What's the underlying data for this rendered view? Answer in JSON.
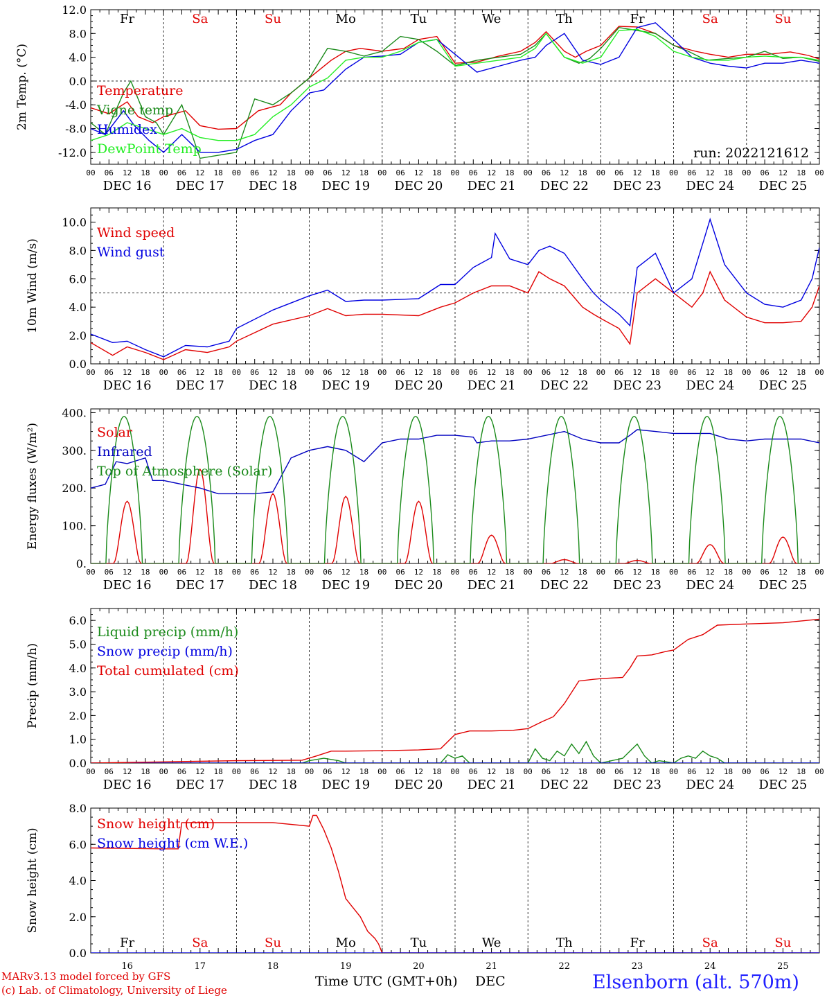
{
  "run_label": "run: 2022121612",
  "station": "Elsenborn (alt. 570m)",
  "credits": [
    "MARv3.13 model forced by GFS",
    "(c) Lab. of Climatology, University of Liege"
  ],
  "xaxis_label": "Time UTC (GMT+0h)",
  "xaxis_month": "DEC",
  "hour_ticks": [
    "00",
    "06",
    "12",
    "18"
  ],
  "end_tick": "00",
  "dates": [
    "DEC 16",
    "DEC 17",
    "DEC 18",
    "DEC 19",
    "DEC 20",
    "DEC 21",
    "DEC 22",
    "DEC 23",
    "DEC 24",
    "DEC 25"
  ],
  "day_numbers": [
    "16",
    "17",
    "18",
    "19",
    "20",
    "21",
    "22",
    "23",
    "24",
    "25"
  ],
  "weekdays": [
    "Fr",
    "Sa",
    "Su",
    "Mo",
    "Tu",
    "We",
    "Th",
    "Fr",
    "Sa",
    "Su"
  ],
  "weekend_color": "#e00000",
  "chart_data": [
    {
      "type": "line",
      "ylabel": "2m Temp. (°C)",
      "ylim": [
        -14,
        12
      ],
      "yticks": [
        -12,
        -8,
        -4,
        0,
        4,
        8,
        12
      ],
      "ytick_labels": [
        "-12.0",
        "-8.0",
        "-4.0",
        "0.0",
        "4.0",
        "8.0",
        "12.0"
      ],
      "ref_line": 0,
      "series": [
        {
          "name": "Temperature",
          "color": "#e00000",
          "x": [
            0,
            0.25,
            0.5,
            0.65,
            0.85,
            1.0,
            1.3,
            1.5,
            1.75,
            2.0,
            2.3,
            2.6,
            2.75,
            3.0,
            3.3,
            3.5,
            3.7,
            4.0,
            4.3,
            4.5,
            4.75,
            5.0,
            5.3,
            5.6,
            5.9,
            6.1,
            6.25,
            6.5,
            6.65,
            6.8,
            7.0,
            7.25,
            7.5,
            7.75,
            8.0,
            8.3,
            8.5,
            8.75,
            9.0,
            9.3,
            9.6,
            9.85,
            10.0
          ],
          "values": [
            -4.5,
            -5.5,
            -3.5,
            -6,
            -7,
            -6,
            -5,
            -7.5,
            -8.1,
            -8,
            -5,
            -4,
            -2,
            0.5,
            3.5,
            5,
            5.5,
            5,
            5.5,
            7,
            7.5,
            3,
            3.2,
            4.2,
            5,
            6.5,
            8.3,
            5,
            4,
            5,
            6,
            9.2,
            9.1,
            8,
            6,
            5,
            4.5,
            4,
            4.5,
            4.5,
            4.9,
            4.3,
            3.7
          ]
        },
        {
          "name": "Vigne temp",
          "color": "#1a8a1a",
          "x": [
            0,
            0.2,
            0.45,
            0.55,
            0.75,
            0.9,
            1.0,
            1.25,
            1.5,
            1.75,
            2.0,
            2.25,
            2.5,
            2.75,
            3.0,
            3.25,
            3.5,
            3.75,
            4.0,
            4.25,
            4.5,
            4.75,
            5.0,
            5.3,
            5.6,
            5.9,
            6.1,
            6.25,
            6.5,
            6.7,
            6.85,
            7.0,
            7.25,
            7.5,
            7.75,
            8.0,
            8.2,
            8.45,
            8.75,
            9.0,
            9.25,
            9.5,
            9.75,
            10.0
          ],
          "values": [
            -7,
            -9,
            -2,
            0,
            -6,
            -7,
            -9,
            -4,
            -13,
            -12.5,
            -12,
            -3,
            -4,
            -2,
            0.5,
            5.5,
            5,
            4.2,
            5,
            7.5,
            7,
            5,
            2.6,
            3.5,
            4,
            4.5,
            6,
            8,
            4,
            3,
            3.8,
            5.5,
            9,
            8.5,
            8,
            6,
            5,
            3.5,
            3.8,
            4,
            5,
            3.8,
            4,
            3.3
          ]
        },
        {
          "name": "Humidex",
          "color": "#0000e0",
          "x": [
            0,
            0.2,
            0.45,
            0.6,
            0.8,
            1.0,
            1.25,
            1.5,
            1.75,
            2.0,
            2.25,
            2.5,
            2.75,
            3.0,
            3.2,
            3.5,
            3.75,
            4.0,
            4.25,
            4.5,
            4.75,
            5.0,
            5.3,
            5.6,
            5.9,
            6.1,
            6.25,
            6.5,
            6.75,
            7.0,
            7.25,
            7.5,
            7.75,
            8.0,
            8.25,
            8.5,
            8.75,
            9.0,
            9.25,
            9.5,
            9.75,
            10.0
          ],
          "values": [
            -8,
            -9,
            -5,
            -7.5,
            -10,
            -12,
            -9,
            -12,
            -12,
            -11.5,
            -10,
            -9,
            -5,
            -2,
            -1.5,
            2,
            4,
            4.2,
            4.5,
            6.5,
            7,
            4.5,
            1.5,
            2.5,
            3.5,
            4,
            6,
            8,
            3.5,
            2.8,
            4,
            9,
            9.8,
            7,
            4,
            3,
            2.5,
            2.2,
            3,
            3,
            3.5,
            3
          ]
        },
        {
          "name": "DewPoint Temp",
          "color": "#22ee22",
          "x": [
            0,
            0.25,
            0.5,
            0.75,
            1.0,
            1.25,
            1.5,
            1.75,
            2.0,
            2.25,
            2.5,
            2.75,
            3.0,
            3.25,
            3.5,
            3.75,
            4.0,
            4.25,
            4.5,
            4.75,
            5.0,
            5.3,
            5.6,
            5.9,
            6.1,
            6.25,
            6.5,
            6.75,
            7.0,
            7.25,
            7.5,
            7.75,
            8.0,
            8.25,
            8.5,
            8.75,
            9.0,
            9.25,
            9.5,
            9.75,
            10.0
          ],
          "values": [
            -10,
            -9,
            -7,
            -8,
            -9,
            -8,
            -9.5,
            -10,
            -10,
            -9,
            -6,
            -4,
            -1,
            0.5,
            3.5,
            4,
            4,
            5,
            6.5,
            7,
            2.5,
            3,
            3.5,
            4,
            5.5,
            8,
            4,
            3,
            4,
            8.5,
            8.7,
            7.5,
            5,
            4,
            3.5,
            3.5,
            4,
            4.2,
            4,
            4,
            3.5
          ]
        }
      ]
    },
    {
      "type": "line",
      "ylabel": "10m Wind (m/s)",
      "ylim": [
        0,
        11
      ],
      "yticks": [
        0,
        2,
        4,
        6,
        8,
        10
      ],
      "ytick_labels": [
        "0.0",
        "2.0",
        "4.0",
        "6.0",
        "8.0",
        "10.0"
      ],
      "ref_line": 5,
      "series": [
        {
          "name": "Wind speed",
          "color": "#e00000",
          "x": [
            0,
            0.3,
            0.5,
            0.75,
            1.0,
            1.3,
            1.6,
            1.9,
            2.0,
            2.5,
            3.0,
            3.25,
            3.5,
            3.75,
            4.0,
            4.5,
            4.8,
            5.0,
            5.25,
            5.5,
            5.75,
            6.0,
            6.15,
            6.3,
            6.5,
            6.75,
            6.9,
            7.0,
            7.25,
            7.4,
            7.5,
            7.75,
            8.0,
            8.25,
            8.4,
            8.5,
            8.7,
            9.0,
            9.25,
            9.5,
            9.75,
            9.9,
            10.0
          ],
          "values": [
            1.5,
            0.6,
            1.2,
            0.8,
            0.3,
            1.0,
            0.8,
            1.2,
            1.6,
            2.8,
            3.4,
            3.9,
            3.4,
            3.5,
            3.5,
            3.4,
            4.0,
            4.3,
            5.0,
            5.5,
            5.5,
            5.0,
            6.5,
            6.0,
            5.5,
            4.0,
            3.5,
            3.2,
            2.5,
            1.4,
            5.0,
            6.0,
            5.0,
            4.0,
            5.0,
            6.5,
            4.5,
            3.3,
            2.9,
            2.9,
            3.0,
            4.0,
            5.5
          ]
        },
        {
          "name": "Wind gust",
          "color": "#0000e0",
          "x": [
            0,
            0.3,
            0.5,
            0.75,
            1.0,
            1.3,
            1.6,
            1.9,
            2.0,
            2.5,
            3.0,
            3.25,
            3.5,
            3.75,
            4.0,
            4.5,
            4.8,
            5.0,
            5.25,
            5.5,
            5.55,
            5.75,
            6.0,
            6.15,
            6.3,
            6.5,
            6.75,
            6.9,
            7.0,
            7.25,
            7.4,
            7.5,
            7.75,
            8.0,
            8.25,
            8.4,
            8.5,
            8.7,
            9.0,
            9.25,
            9.5,
            9.75,
            9.9,
            10.0
          ],
          "values": [
            2.1,
            1.5,
            1.6,
            1.0,
            0.5,
            1.3,
            1.2,
            1.6,
            2.5,
            3.8,
            4.8,
            5.2,
            4.4,
            4.5,
            4.5,
            4.6,
            5.6,
            5.6,
            6.8,
            7.5,
            9.2,
            7.4,
            7.0,
            8.0,
            8.3,
            7.8,
            6.0,
            5.0,
            4.5,
            3.5,
            2.7,
            6.8,
            7.8,
            5.0,
            6.0,
            8.5,
            10.2,
            7.0,
            5.0,
            4.2,
            4.0,
            4.5,
            6.0,
            8.2
          ]
        }
      ]
    },
    {
      "type": "line",
      "ylabel": "Energy fluxes (W/m²)",
      "ylim": [
        0,
        410
      ],
      "yticks": [
        0,
        100,
        200,
        300,
        400
      ],
      "ytick_labels": [
        "0.",
        "100.",
        "200.",
        "300.",
        "400."
      ],
      "series": [
        {
          "name": "Solar",
          "color": "#e00000",
          "peaks": [
            165,
            250,
            185,
            178,
            165,
            75,
            10,
            8,
            50,
            70
          ]
        },
        {
          "name": "Infrared",
          "color": "#0000c0",
          "x": [
            0,
            0.2,
            0.35,
            0.5,
            0.75,
            0.85,
            1.0,
            1.25,
            1.5,
            1.75,
            2.0,
            2.25,
            2.5,
            2.75,
            3.0,
            3.25,
            3.5,
            3.75,
            4.0,
            4.25,
            4.5,
            4.75,
            5.0,
            5.25,
            5.3,
            5.5,
            5.75,
            6.0,
            6.25,
            6.5,
            6.75,
            7.0,
            7.25,
            7.4,
            7.5,
            7.75,
            8.0,
            8.25,
            8.5,
            8.75,
            9.0,
            9.25,
            9.5,
            9.75,
            10.0
          ],
          "values": [
            200,
            210,
            270,
            265,
            280,
            220,
            220,
            210,
            200,
            185,
            185,
            185,
            190,
            280,
            300,
            310,
            300,
            270,
            320,
            330,
            330,
            340,
            340,
            335,
            320,
            325,
            325,
            330,
            340,
            350,
            330,
            320,
            320,
            340,
            355,
            350,
            345,
            345,
            345,
            330,
            325,
            330,
            330,
            330,
            320
          ]
        },
        {
          "name": "Top of Atmosphere (Solar)",
          "color": "#1a8a1a",
          "peak": 390
        }
      ]
    },
    {
      "type": "line",
      "ylabel": "Precip (mm/h)",
      "ylim": [
        0,
        6.5
      ],
      "yticks": [
        0,
        1,
        2,
        3,
        4,
        5,
        6
      ],
      "ytick_labels": [
        "0.0",
        "1.0",
        "2.0",
        "3.0",
        "4.0",
        "5.0",
        "6.0"
      ],
      "series": [
        {
          "name": "Liquid precip (mm/h)",
          "color": "#1a8a1a",
          "x": [
            0,
            2.9,
            3.0,
            3.2,
            3.4,
            3.5,
            4.8,
            4.9,
            5.0,
            5.1,
            5.2,
            6.0,
            6.1,
            6.2,
            6.3,
            6.4,
            6.5,
            6.6,
            6.7,
            6.8,
            6.9,
            7.0,
            7.3,
            7.4,
            7.5,
            7.6,
            7.7,
            7.8,
            8.0,
            8.1,
            8.2,
            8.3,
            8.4,
            8.5,
            8.6,
            8.7,
            10.0
          ],
          "values": [
            0,
            0,
            0.1,
            0.2,
            0.1,
            0,
            0,
            0.35,
            0.2,
            0.3,
            0,
            0,
            0.6,
            0.2,
            0.1,
            0.5,
            0.3,
            0.8,
            0.4,
            0.9,
            0.3,
            0,
            0.2,
            0.5,
            0.8,
            0.3,
            0,
            0.1,
            0,
            0.2,
            0.3,
            0.2,
            0.5,
            0.3,
            0.2,
            0,
            0
          ]
        },
        {
          "name": "Snow precip (mm/h)",
          "color": "#0000e0",
          "x": [
            0,
            10
          ],
          "values": [
            0,
            0
          ]
        },
        {
          "name": "Total cumulated (cm)",
          "color": "#e00000",
          "x": [
            0,
            1.0,
            2.0,
            2.9,
            3.1,
            3.3,
            3.5,
            4.0,
            4.5,
            4.8,
            5.0,
            5.2,
            5.5,
            5.8,
            6.0,
            6.2,
            6.35,
            6.5,
            6.7,
            6.9,
            7.0,
            7.3,
            7.4,
            7.5,
            7.7,
            7.9,
            8.0,
            8.2,
            8.4,
            8.6,
            9.0,
            9.5,
            10.0
          ],
          "values": [
            0,
            0.05,
            0.1,
            0.12,
            0.3,
            0.5,
            0.5,
            0.52,
            0.55,
            0.6,
            1.2,
            1.35,
            1.35,
            1.38,
            1.45,
            1.75,
            1.95,
            2.5,
            3.45,
            3.52,
            3.55,
            3.6,
            4.0,
            4.5,
            4.55,
            4.7,
            4.75,
            5.2,
            5.4,
            5.8,
            5.85,
            5.9,
            6.05
          ]
        }
      ]
    },
    {
      "type": "line",
      "ylabel": "Snow height (cm)",
      "ylim": [
        0,
        8
      ],
      "yticks": [
        0,
        2,
        4,
        6,
        8
      ],
      "ytick_labels": [
        "0.0",
        "2.0",
        "4.0",
        "6.0",
        "8.0"
      ],
      "series": [
        {
          "name": "Snow height (cm)",
          "color": "#e00000",
          "x": [
            0,
            1.0,
            1.2,
            1.25,
            2.0,
            2.5,
            3.0,
            3.05,
            3.1,
            3.2,
            3.3,
            3.4,
            3.5,
            3.6,
            3.7,
            3.8,
            3.9,
            3.95,
            4.0,
            10.0
          ],
          "values": [
            5.8,
            5.75,
            5.75,
            7.2,
            7.2,
            7.2,
            7.0,
            7.6,
            7.6,
            6.8,
            5.8,
            4.5,
            3.0,
            2.5,
            2.0,
            1.2,
            0.8,
            0.5,
            0,
            0
          ]
        },
        {
          "name": "Snow height (cm W.E.)",
          "color": "#0000e0",
          "x": [
            0,
            10
          ],
          "values": [
            0,
            0
          ]
        }
      ]
    }
  ]
}
